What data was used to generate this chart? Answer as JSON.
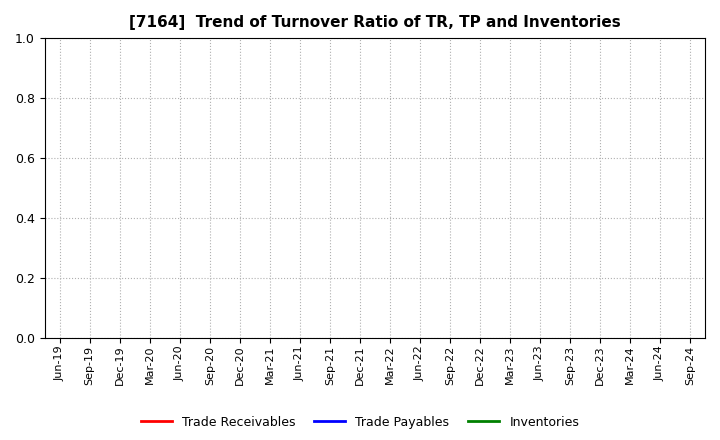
{
  "title": "[7164]  Trend of Turnover Ratio of TR, TP and Inventories",
  "title_fontsize": 11,
  "ylim": [
    0.0,
    1.0
  ],
  "yticks": [
    0.0,
    0.2,
    0.4,
    0.6,
    0.8,
    1.0
  ],
  "background_color": "#ffffff",
  "plot_bg_color": "#ffffff",
  "grid_color": "#b0b0b0",
  "x_labels": [
    "Jun-19",
    "Sep-19",
    "Dec-19",
    "Mar-20",
    "Jun-20",
    "Sep-20",
    "Dec-20",
    "Mar-21",
    "Jun-21",
    "Sep-21",
    "Dec-21",
    "Mar-22",
    "Jun-22",
    "Sep-22",
    "Dec-22",
    "Mar-23",
    "Jun-23",
    "Sep-23",
    "Dec-23",
    "Mar-24",
    "Jun-24",
    "Sep-24"
  ],
  "series": [
    {
      "label": "Trade Receivables",
      "color": "#ff0000",
      "values": [
        null,
        null,
        null,
        null,
        null,
        null,
        null,
        null,
        null,
        null,
        null,
        null,
        null,
        null,
        null,
        null,
        null,
        null,
        null,
        null,
        null,
        null
      ]
    },
    {
      "label": "Trade Payables",
      "color": "#0000ff",
      "values": [
        null,
        null,
        null,
        null,
        null,
        null,
        null,
        null,
        null,
        null,
        null,
        null,
        null,
        null,
        null,
        null,
        null,
        null,
        null,
        null,
        null,
        null
      ]
    },
    {
      "label": "Inventories",
      "color": "#008000",
      "values": [
        null,
        null,
        null,
        null,
        null,
        null,
        null,
        null,
        null,
        null,
        null,
        null,
        null,
        null,
        null,
        null,
        null,
        null,
        null,
        null,
        null,
        null
      ]
    }
  ],
  "legend_ncol": 3,
  "figsize": [
    7.2,
    4.4
  ],
  "dpi": 100,
  "tick_fontsize": 8,
  "ytick_fontsize": 9
}
